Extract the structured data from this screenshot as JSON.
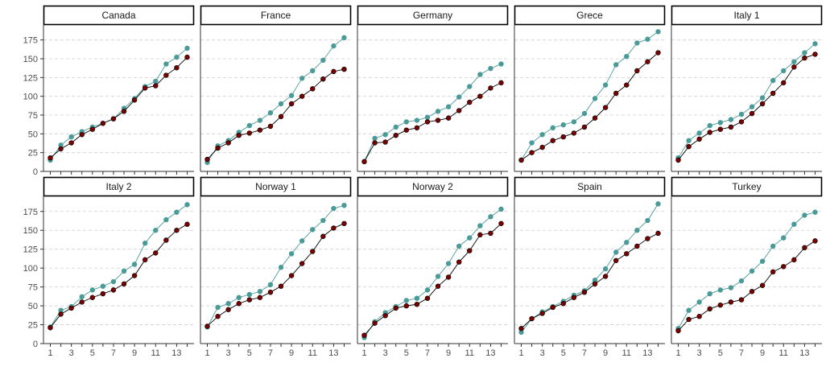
{
  "chart_data": {
    "type": "line",
    "facet_layout": {
      "rows": 2,
      "cols": 5
    },
    "x": [
      1,
      2,
      3,
      4,
      5,
      6,
      7,
      8,
      9,
      10,
      11,
      12,
      13,
      14
    ],
    "x_ticks": [
      1,
      3,
      5,
      7,
      9,
      11,
      13
    ],
    "y_ticks": [
      0,
      25,
      50,
      75,
      100,
      125,
      150,
      175
    ],
    "ylim": [
      0,
      195
    ],
    "grid": {
      "horizontal_dashed": true,
      "vertical": false
    },
    "legend": "none",
    "colors": {
      "teal": "#4a9b97",
      "red": "#7a0000"
    },
    "facets": [
      {
        "label": "Canada",
        "teal": [
          15,
          35,
          46,
          53,
          59,
          64,
          70,
          84,
          97,
          113,
          120,
          143,
          152,
          164
        ],
        "red": [
          18,
          30,
          38,
          49,
          56,
          64,
          70,
          80,
          95,
          111,
          114,
          128,
          138,
          152
        ]
      },
      {
        "label": "France",
        "teal": [
          12,
          34,
          41,
          52,
          61,
          68,
          78,
          90,
          101,
          124,
          134,
          148,
          167,
          178
        ],
        "red": [
          16,
          31,
          38,
          48,
          51,
          55,
          60,
          73,
          90,
          100,
          110,
          123,
          133,
          136
        ]
      },
      {
        "label": "Germany",
        "teal": [
          13,
          44,
          49,
          59,
          66,
          68,
          72,
          80,
          86,
          99,
          113,
          129,
          137,
          143
        ],
        "red": [
          13,
          38,
          39,
          48,
          55,
          58,
          66,
          68,
          71,
          81,
          92,
          100,
          111,
          118
        ]
      },
      {
        "label": "Grece",
        "teal": [
          15,
          38,
          49,
          58,
          62,
          66,
          77,
          97,
          115,
          142,
          153,
          171,
          176,
          186
        ],
        "red": [
          15,
          25,
          32,
          41,
          46,
          51,
          59,
          71,
          85,
          104,
          115,
          134,
          146,
          158
        ]
      },
      {
        "label": "Italy 1",
        "teal": [
          18,
          41,
          51,
          61,
          65,
          69,
          76,
          86,
          98,
          121,
          134,
          146,
          158,
          170
        ],
        "red": [
          15,
          33,
          43,
          52,
          56,
          59,
          66,
          77,
          90,
          104,
          118,
          139,
          151,
          156
        ]
      },
      {
        "label": "Italy 2",
        "teal": [
          22,
          44,
          49,
          62,
          71,
          76,
          82,
          96,
          105,
          133,
          150,
          164,
          174,
          184
        ],
        "red": [
          21,
          39,
          47,
          55,
          61,
          66,
          71,
          79,
          90,
          111,
          120,
          137,
          150,
          158
        ]
      },
      {
        "label": "Norway 1",
        "teal": [
          22,
          48,
          53,
          61,
          65,
          69,
          78,
          101,
          119,
          136,
          151,
          163,
          179,
          183
        ],
        "red": [
          23,
          36,
          45,
          53,
          58,
          61,
          68,
          76,
          90,
          106,
          122,
          142,
          153,
          159
        ]
      },
      {
        "label": "Norway 2",
        "teal": [
          8,
          29,
          41,
          49,
          57,
          60,
          71,
          89,
          106,
          129,
          140,
          156,
          168,
          178
        ],
        "red": [
          11,
          27,
          37,
          47,
          50,
          52,
          60,
          76,
          88,
          108,
          123,
          144,
          146,
          159
        ]
      },
      {
        "label": "Spain",
        "teal": [
          15,
          33,
          42,
          49,
          56,
          64,
          70,
          84,
          99,
          121,
          134,
          150,
          163,
          185
        ],
        "red": [
          20,
          33,
          40,
          48,
          53,
          61,
          68,
          79,
          89,
          110,
          119,
          129,
          139,
          146
        ]
      },
      {
        "label": "Turkey",
        "teal": [
          20,
          44,
          55,
          66,
          71,
          74,
          83,
          96,
          109,
          129,
          140,
          158,
          170,
          174
        ],
        "red": [
          17,
          32,
          36,
          46,
          51,
          55,
          58,
          69,
          77,
          95,
          102,
          111,
          127,
          136
        ]
      }
    ]
  }
}
